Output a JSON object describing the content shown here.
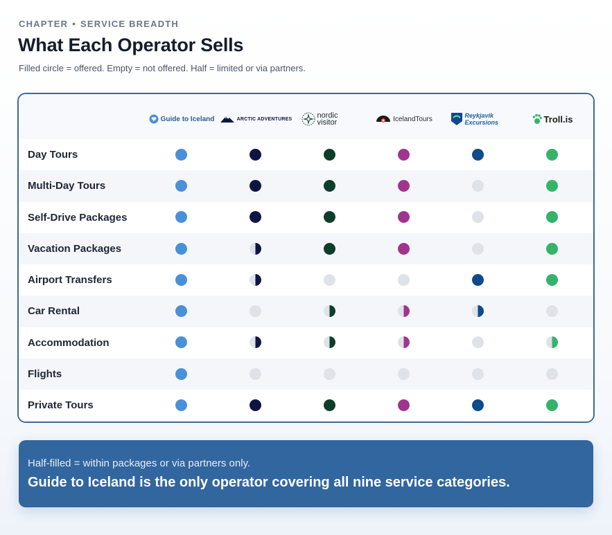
{
  "header": {
    "eyebrow_left": "CHAPTER",
    "eyebrow_sep": "•",
    "eyebrow_right": "SERVICE BREADTH",
    "title": "What Each Operator Sells",
    "subtitle": "Filled circle = offered. Empty = not offered. Half = limited or via partners."
  },
  "operators": [
    {
      "name": "Guide to Iceland",
      "color": "#4a90d9",
      "icon": "heart-shield-icon",
      "text_color": "#2f5d8a"
    },
    {
      "name": "ARCTIC ADVENTURES",
      "color": "#0f1543",
      "icon": "mountain-icon",
      "text_color": "#0f1543"
    },
    {
      "name": "nordic visitor",
      "color": "#0e3d2c",
      "icon": "compass-star-icon",
      "text_color": "#1c2a28"
    },
    {
      "name": "IcelandTours",
      "color": "#a0358f",
      "icon": "eye-logo-icon",
      "text_color": "#2a2a2a"
    },
    {
      "name": "Reykjavik Excursions",
      "color": "#0f4a8a",
      "icon": "flag-icon",
      "text_color": "#1f5fa0"
    },
    {
      "name": "Troll.is",
      "color": "#35b36a",
      "icon": "troll-paw-icon",
      "text_color": "#1a1a1a"
    }
  ],
  "empty_color": "#dfe2e7",
  "services": [
    {
      "label": "Day Tours",
      "status": [
        "full",
        "full",
        "full",
        "full",
        "full",
        "full"
      ]
    },
    {
      "label": "Multi-Day Tours",
      "status": [
        "full",
        "full",
        "full",
        "full",
        "empty",
        "full"
      ]
    },
    {
      "label": "Self-Drive Packages",
      "status": [
        "full",
        "full",
        "full",
        "full",
        "empty",
        "full"
      ]
    },
    {
      "label": "Vacation Packages",
      "status": [
        "full",
        "half",
        "full",
        "full",
        "empty",
        "full"
      ]
    },
    {
      "label": "Airport Transfers",
      "status": [
        "full",
        "half",
        "empty",
        "empty",
        "full",
        "full"
      ]
    },
    {
      "label": "Car Rental",
      "status": [
        "full",
        "empty",
        "half",
        "half",
        "half",
        "empty"
      ]
    },
    {
      "label": "Accommodation",
      "status": [
        "full",
        "half",
        "half",
        "half",
        "empty",
        "half"
      ]
    },
    {
      "label": "Flights",
      "status": [
        "full",
        "empty",
        "empty",
        "empty",
        "empty",
        "empty"
      ]
    },
    {
      "label": "Private Tours",
      "status": [
        "full",
        "full",
        "full",
        "full",
        "full",
        "full"
      ]
    }
  ],
  "banner": {
    "note": "Half-filled = within packages or via partners only.",
    "headline": "Guide to Iceland is the only operator covering all nine service categories."
  }
}
